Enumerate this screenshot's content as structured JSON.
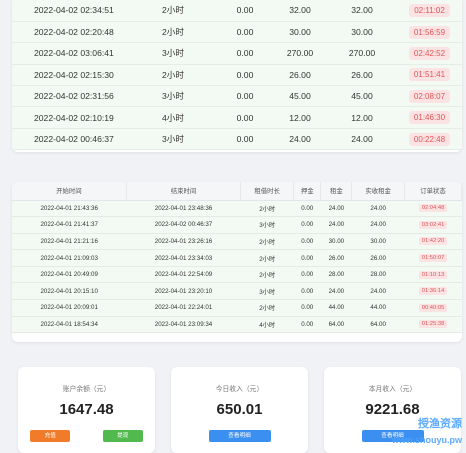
{
  "top_table": {
    "rows": [
      {
        "start": "2022-04-02 02:34:51",
        "duration": "2小时",
        "deposit": "0.00",
        "rent": "32.00",
        "actual": "32.00",
        "status": "02:11:02"
      },
      {
        "start": "2022-04-02 02:20:48",
        "duration": "2小时",
        "deposit": "0.00",
        "rent": "30.00",
        "actual": "30.00",
        "status": "01:56:59"
      },
      {
        "start": "2022-04-02 03:06:41",
        "duration": "3小时",
        "deposit": "0.00",
        "rent": "270.00",
        "actual": "270.00",
        "status": "02:42:52"
      },
      {
        "start": "2022-04-02 02:15:30",
        "duration": "2小时",
        "deposit": "0.00",
        "rent": "26.00",
        "actual": "26.00",
        "status": "01:51:41"
      },
      {
        "start": "2022-04-02 02:31:56",
        "duration": "3小时",
        "deposit": "0.00",
        "rent": "45.00",
        "actual": "45.00",
        "status": "02:08:07"
      },
      {
        "start": "2022-04-02 02:10:19",
        "duration": "4小时",
        "deposit": "0.00",
        "rent": "12.00",
        "actual": "12.00",
        "status": "01:46:30"
      },
      {
        "start": "2022-04-02 00:46:37",
        "duration": "3小时",
        "deposit": "0.00",
        "rent": "24.00",
        "actual": "24.00",
        "status": "00:22:48"
      }
    ]
  },
  "orders_table": {
    "headers": [
      "开始时间",
      "结束时间",
      "租借时长",
      "押金",
      "租金",
      "实收租金",
      "订单状态"
    ],
    "rows": [
      {
        "start": "2022-04-01 21:43:36",
        "end": "2022-04-01 23:48:36",
        "duration": "2小时",
        "deposit": "0.00",
        "rent": "24.00",
        "actual": "24.00",
        "status": "02:04:48"
      },
      {
        "start": "2022-04-01 21:41:37",
        "end": "2022-04-02 00:46:37",
        "duration": "3小时",
        "deposit": "0.00",
        "rent": "24.00",
        "actual": "24.00",
        "status": "03:02:41"
      },
      {
        "start": "2022-04-01 21:21:16",
        "end": "2022-04-01 23:26:16",
        "duration": "2小时",
        "deposit": "0.00",
        "rent": "30.00",
        "actual": "30.00",
        "status": "01:42:20"
      },
      {
        "start": "2022-04-01 21:09:03",
        "end": "2022-04-01 23:34:03",
        "duration": "2小时",
        "deposit": "0.00",
        "rent": "26.00",
        "actual": "26.00",
        "status": "01:50:07"
      },
      {
        "start": "2022-04-01 20:49:09",
        "end": "2022-04-01 22:54:09",
        "duration": "2小时",
        "deposit": "0.00",
        "rent": "28.00",
        "actual": "28.00",
        "status": "01:10:13"
      },
      {
        "start": "2022-04-01 20:15:10",
        "end": "2022-04-01 23:20:10",
        "duration": "3小时",
        "deposit": "0.00",
        "rent": "24.00",
        "actual": "24.00",
        "status": "01:36:14"
      },
      {
        "start": "2022-04-01 20:09:01",
        "end": "2022-04-01 22:24:01",
        "duration": "2小时",
        "deposit": "0.00",
        "rent": "44.00",
        "actual": "44.00",
        "status": "00:40:05"
      },
      {
        "start": "2022-04-01 18:54:34",
        "end": "2022-04-01 23:09:34",
        "duration": "4小时",
        "deposit": "0.00",
        "rent": "64.00",
        "actual": "64.00",
        "status": "01:25:38"
      }
    ]
  },
  "stats": {
    "balance": {
      "label": "账户余额（元）",
      "value": "1647.48",
      "recharge_label": "充值",
      "withdraw_label": "提现"
    },
    "today": {
      "label": "今日收入（元）",
      "value": "650.01",
      "detail_label": "查看明细"
    },
    "month": {
      "label": "本月收入（元）",
      "value": "9221.68",
      "detail_label": "查看明细"
    }
  },
  "watermark": {
    "line1": "授渔资源",
    "line2": "www.shouyu.pw"
  },
  "colors": {
    "recharge": "#f07b28",
    "withdraw": "#52b94f",
    "detail": "#3b8ff0",
    "status_bg": "#fbe3e3",
    "status_fg": "#e05555"
  }
}
